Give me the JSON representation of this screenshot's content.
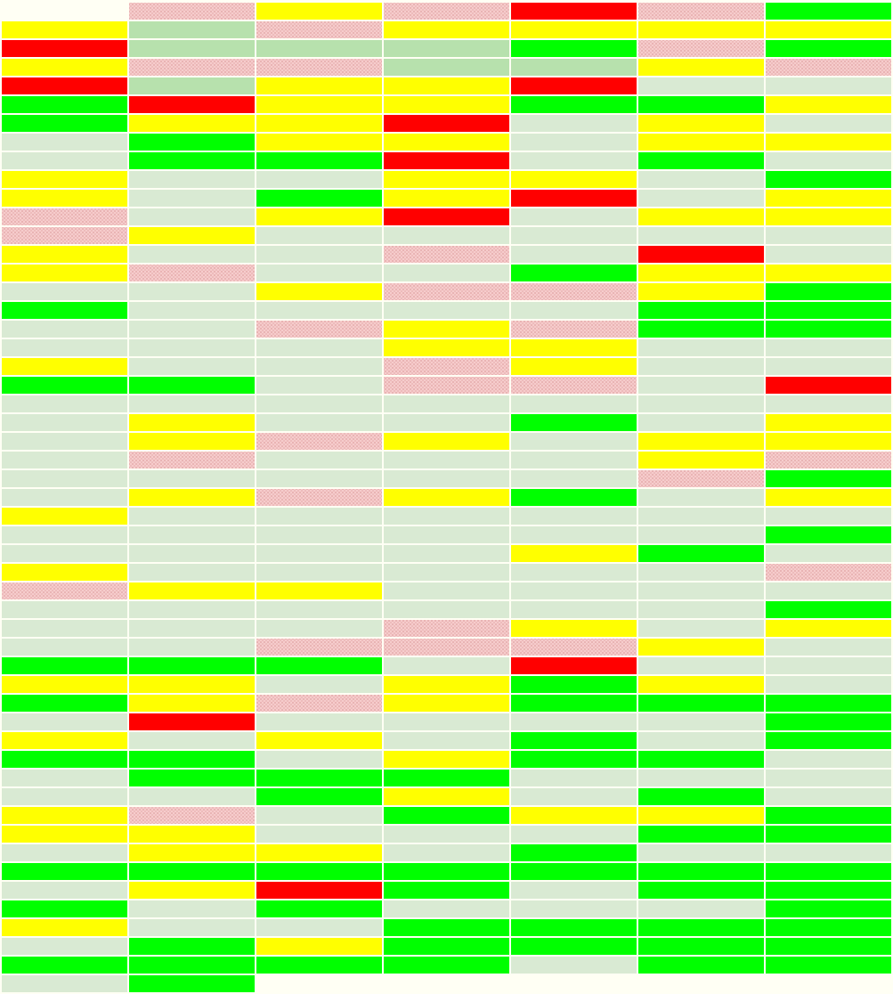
{
  "grid": {
    "palette": {
      "Y": "#ffff00",
      "R": "#ff0000",
      "G": "#00ff00",
      "P": "pattern",
      "L": "#d9ead3",
      "M": "#b7e1ad",
      "E": "none"
    },
    "rows": [
      [
        "E",
        "P",
        "Y",
        "P",
        "R",
        "P",
        "G"
      ],
      [
        "Y",
        "M",
        "P",
        "Y",
        "Y",
        "Y",
        "Y"
      ],
      [
        "R",
        "M",
        "M",
        "M",
        "G",
        "P",
        "G"
      ],
      [
        "Y",
        "P",
        "P",
        "M",
        "M",
        "Y",
        "P"
      ],
      [
        "R",
        "M",
        "Y",
        "Y",
        "R",
        "L",
        "L"
      ],
      [
        "G",
        "R",
        "Y",
        "Y",
        "G",
        "G",
        "Y"
      ],
      [
        "G",
        "Y",
        "Y",
        "R",
        "L",
        "Y",
        "L"
      ],
      [
        "L",
        "G",
        "Y",
        "Y",
        "L",
        "Y",
        "Y"
      ],
      [
        "L",
        "G",
        "G",
        "R",
        "L",
        "G",
        "L"
      ],
      [
        "Y",
        "L",
        "L",
        "Y",
        "Y",
        "L",
        "G"
      ],
      [
        "Y",
        "L",
        "G",
        "Y",
        "R",
        "L",
        "Y"
      ],
      [
        "P",
        "L",
        "Y",
        "R",
        "L",
        "Y",
        "Y"
      ],
      [
        "P",
        "Y",
        "L",
        "L",
        "L",
        "L",
        "L"
      ],
      [
        "Y",
        "L",
        "L",
        "P",
        "L",
        "R",
        "L"
      ],
      [
        "Y",
        "P",
        "L",
        "L",
        "G",
        "Y",
        "Y"
      ],
      [
        "L",
        "L",
        "Y",
        "P",
        "P",
        "Y",
        "G"
      ],
      [
        "G",
        "L",
        "L",
        "L",
        "L",
        "G",
        "G"
      ],
      [
        "L",
        "L",
        "P",
        "Y",
        "P",
        "G",
        "G"
      ],
      [
        "L",
        "L",
        "L",
        "Y",
        "Y",
        "L",
        "L"
      ],
      [
        "Y",
        "L",
        "L",
        "P",
        "Y",
        "L",
        "L"
      ],
      [
        "G",
        "G",
        "L",
        "P",
        "P",
        "L",
        "R"
      ],
      [
        "L",
        "L",
        "L",
        "L",
        "L",
        "L",
        "L"
      ],
      [
        "L",
        "Y",
        "L",
        "L",
        "G",
        "L",
        "Y"
      ],
      [
        "L",
        "Y",
        "P",
        "Y",
        "L",
        "Y",
        "Y"
      ],
      [
        "L",
        "P",
        "L",
        "L",
        "L",
        "Y",
        "P"
      ],
      [
        "L",
        "L",
        "L",
        "L",
        "L",
        "P",
        "G"
      ],
      [
        "L",
        "Y",
        "P",
        "Y",
        "G",
        "L",
        "Y"
      ],
      [
        "Y",
        "L",
        "L",
        "L",
        "L",
        "L",
        "L"
      ],
      [
        "L",
        "L",
        "L",
        "L",
        "L",
        "L",
        "G"
      ],
      [
        "L",
        "L",
        "L",
        "L",
        "Y",
        "G",
        "L"
      ],
      [
        "Y",
        "L",
        "L",
        "L",
        "L",
        "L",
        "P"
      ],
      [
        "P",
        "Y",
        "Y",
        "L",
        "L",
        "L",
        "L"
      ],
      [
        "L",
        "L",
        "L",
        "L",
        "L",
        "L",
        "G"
      ],
      [
        "L",
        "L",
        "L",
        "P",
        "Y",
        "L",
        "Y"
      ],
      [
        "L",
        "L",
        "P",
        "P",
        "P",
        "Y",
        "L"
      ],
      [
        "G",
        "G",
        "G",
        "L",
        "R",
        "L",
        "L"
      ],
      [
        "Y",
        "Y",
        "L",
        "Y",
        "G",
        "Y",
        "L"
      ],
      [
        "G",
        "Y",
        "P",
        "Y",
        "G",
        "G",
        "G"
      ],
      [
        "L",
        "R",
        "L",
        "L",
        "L",
        "L",
        "G"
      ],
      [
        "Y",
        "L",
        "Y",
        "L",
        "G",
        "L",
        "G"
      ],
      [
        "G",
        "G",
        "L",
        "Y",
        "G",
        "G",
        "L"
      ],
      [
        "L",
        "G",
        "G",
        "G",
        "L",
        "L",
        "L"
      ],
      [
        "L",
        "L",
        "G",
        "Y",
        "L",
        "G",
        "L"
      ],
      [
        "Y",
        "P",
        "L",
        "G",
        "Y",
        "Y",
        "G"
      ],
      [
        "Y",
        "Y",
        "L",
        "L",
        "L",
        "G",
        "G"
      ],
      [
        "L",
        "Y",
        "Y",
        "L",
        "G",
        "L",
        "L"
      ],
      [
        "G",
        "G",
        "G",
        "G",
        "G",
        "G",
        "G"
      ],
      [
        "L",
        "Y",
        "R",
        "G",
        "L",
        "G",
        "G"
      ],
      [
        "G",
        "L",
        "G",
        "L",
        "L",
        "L",
        "G"
      ],
      [
        "Y",
        "L",
        "L",
        "G",
        "G",
        "G",
        "G"
      ],
      [
        "L",
        "G",
        "Y",
        "G",
        "G",
        "G",
        "G"
      ],
      [
        "G",
        "G",
        "G",
        "G",
        "L",
        "G",
        "G"
      ],
      [
        "L",
        "G",
        "E",
        "E",
        "E",
        "E",
        "E"
      ]
    ]
  }
}
